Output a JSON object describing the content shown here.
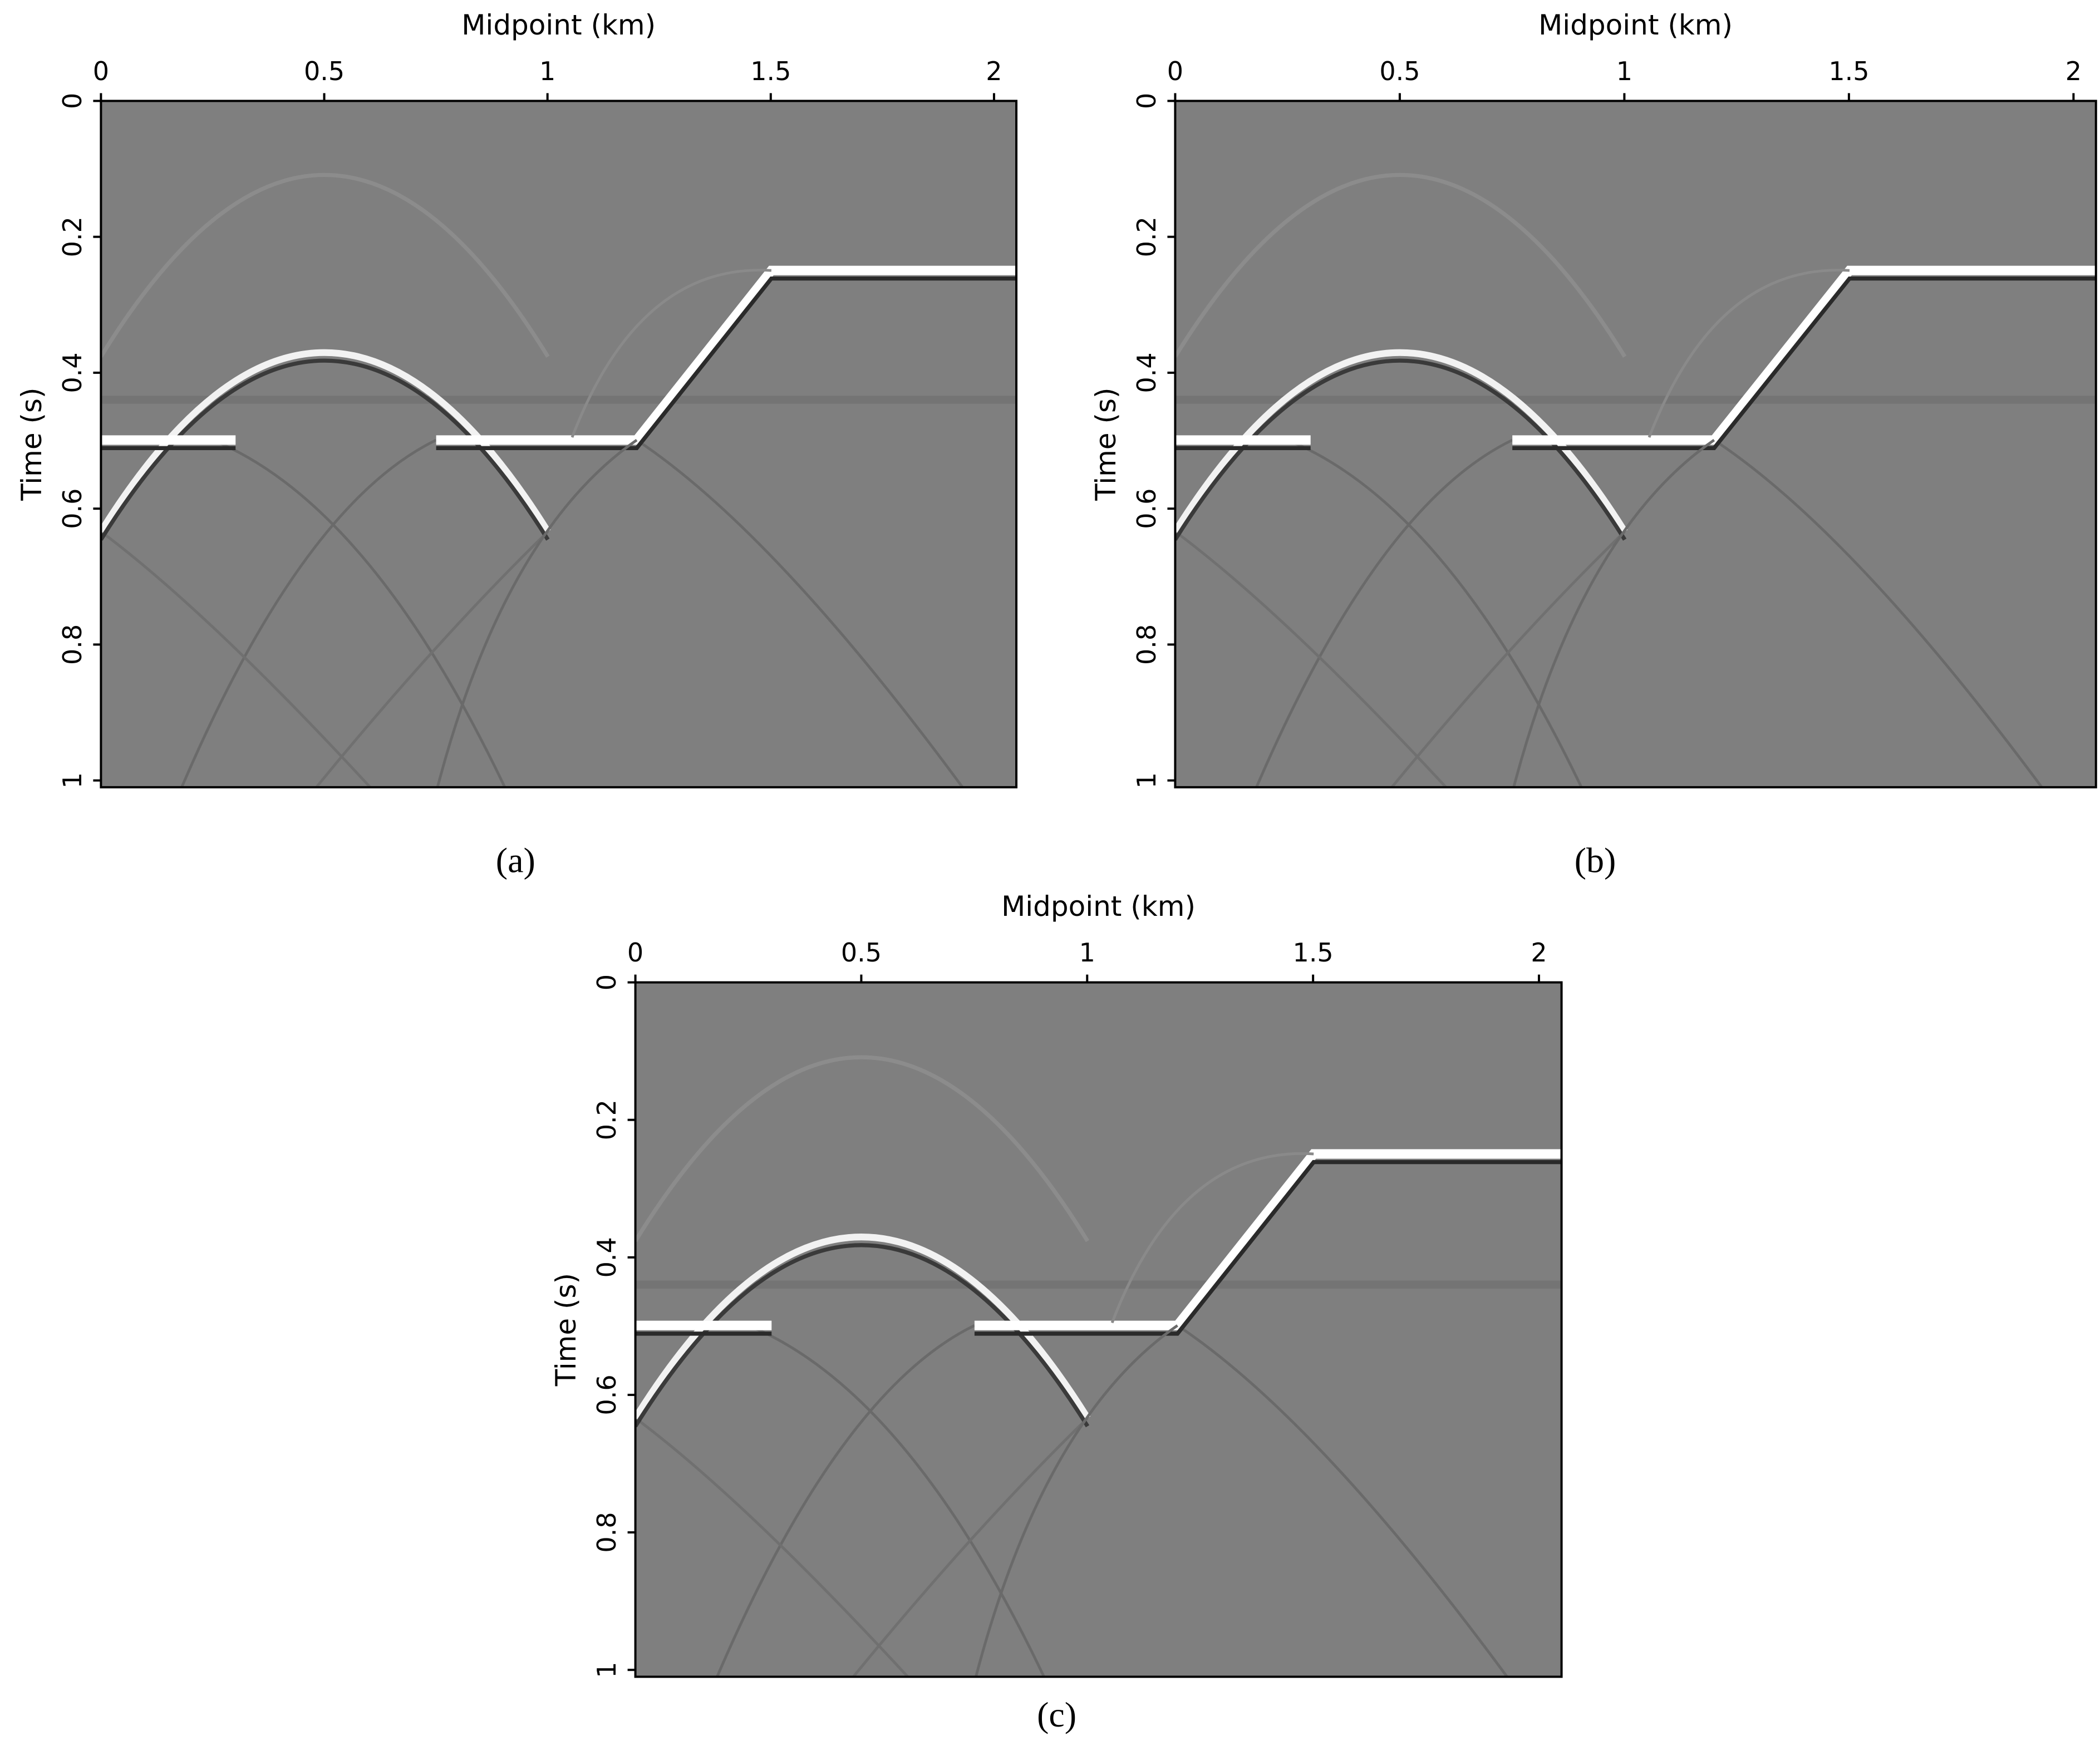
{
  "chart_data": [
    {
      "type": "image",
      "xlabel": "Midpoint (km)",
      "ylabel": "Time (s)",
      "caption": "(a)",
      "xlim": [
        0,
        2.05
      ],
      "ylim": [
        0,
        1.01
      ],
      "xticks": [
        0,
        0.5,
        1,
        1.5,
        2
      ],
      "yticks": [
        0,
        0.2,
        0.4,
        0.6,
        0.8,
        1
      ]
    },
    {
      "type": "image",
      "xlabel": "Midpoint (km)",
      "ylabel": "Time (s)",
      "caption": "(b)",
      "xlim": [
        0,
        2.05
      ],
      "ylim": [
        0,
        1.01
      ],
      "xticks": [
        0,
        0.5,
        1,
        1.5,
        2
      ],
      "yticks": [
        0,
        0.2,
        0.4,
        0.6,
        0.8,
        1
      ]
    },
    {
      "type": "image",
      "xlabel": "Midpoint (km)",
      "ylabel": "Time (s)",
      "caption": "(c)",
      "xlim": [
        0,
        2.05
      ],
      "ylim": [
        0,
        1.01
      ],
      "xticks": [
        0,
        0.5,
        1,
        1.5,
        2
      ],
      "yticks": [
        0,
        0.2,
        0.4,
        0.6,
        0.8,
        1
      ]
    }
  ]
}
